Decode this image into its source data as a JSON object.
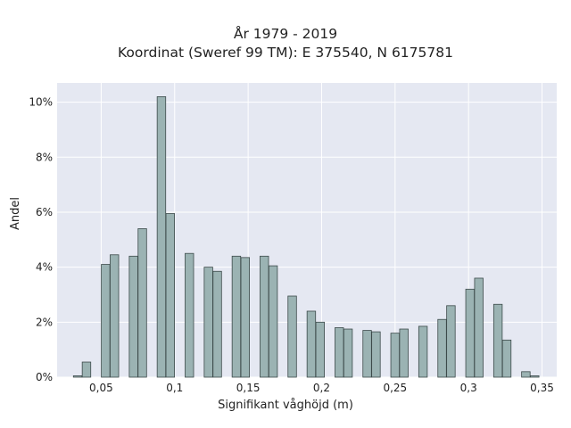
{
  "chart_data": {
    "type": "bar",
    "title": "År 1979 - 2019",
    "subtitle": "Koordinat (Sweref 99 TM): E 375540, N 6175781",
    "xlabel": "Signifikant våghöjd (m)",
    "ylabel": "Andel",
    "xlim": [
      0.02,
      0.36
    ],
    "ylim": [
      0,
      10.7
    ],
    "grid": true,
    "x_ticks": [
      {
        "v": 0.05,
        "label": "0,05"
      },
      {
        "v": 0.1,
        "label": "0,1"
      },
      {
        "v": 0.15,
        "label": "0,15"
      },
      {
        "v": 0.2,
        "label": "0,2"
      },
      {
        "v": 0.25,
        "label": "0,25"
      },
      {
        "v": 0.3,
        "label": "0,3"
      },
      {
        "v": 0.35,
        "label": "0,35"
      }
    ],
    "y_ticks": [
      {
        "v": 0,
        "label": "0%"
      },
      {
        "v": 2,
        "label": "2%"
      },
      {
        "v": 4,
        "label": "4%"
      },
      {
        "v": 6,
        "label": "6%"
      },
      {
        "v": 8,
        "label": "8%"
      },
      {
        "v": 10,
        "label": "10%"
      }
    ],
    "bar_color": "#9bb3b3",
    "bar_edge": "#3c4a4a",
    "bars": [
      {
        "x": 0.034,
        "y": 0.05
      },
      {
        "x": 0.04,
        "y": 0.55
      },
      {
        "x": 0.053,
        "y": 4.1
      },
      {
        "x": 0.059,
        "y": 4.45
      },
      {
        "x": 0.072,
        "y": 4.4
      },
      {
        "x": 0.078,
        "y": 5.4
      },
      {
        "x": 0.091,
        "y": 10.2
      },
      {
        "x": 0.097,
        "y": 5.95
      },
      {
        "x": 0.11,
        "y": 4.5
      },
      {
        "x": 0.123,
        "y": 4.0
      },
      {
        "x": 0.129,
        "y": 3.85
      },
      {
        "x": 0.142,
        "y": 4.4
      },
      {
        "x": 0.148,
        "y": 4.35
      },
      {
        "x": 0.161,
        "y": 4.4
      },
      {
        "x": 0.167,
        "y": 4.05
      },
      {
        "x": 0.18,
        "y": 2.95
      },
      {
        "x": 0.193,
        "y": 2.4
      },
      {
        "x": 0.199,
        "y": 2.0
      },
      {
        "x": 0.212,
        "y": 1.8
      },
      {
        "x": 0.218,
        "y": 1.75
      },
      {
        "x": 0.231,
        "y": 1.7
      },
      {
        "x": 0.237,
        "y": 1.65
      },
      {
        "x": 0.25,
        "y": 1.6
      },
      {
        "x": 0.256,
        "y": 1.75
      },
      {
        "x": 0.269,
        "y": 1.85
      },
      {
        "x": 0.282,
        "y": 2.1
      },
      {
        "x": 0.288,
        "y": 2.6
      },
      {
        "x": 0.301,
        "y": 3.2
      },
      {
        "x": 0.307,
        "y": 3.6
      },
      {
        "x": 0.32,
        "y": 2.65
      },
      {
        "x": 0.326,
        "y": 1.35
      },
      {
        "x": 0.339,
        "y": 0.2
      },
      {
        "x": 0.345,
        "y": 0.05
      }
    ]
  }
}
